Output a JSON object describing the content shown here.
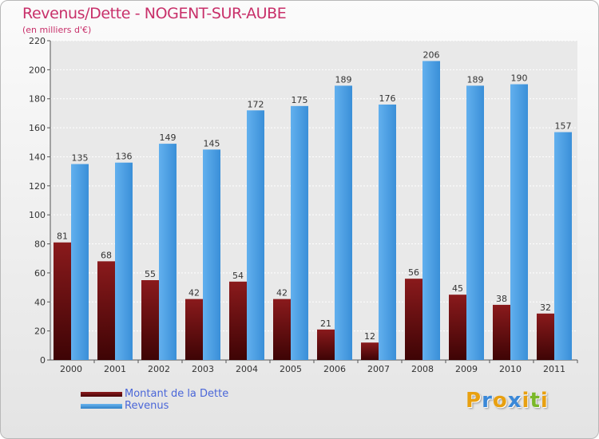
{
  "header": {
    "title": "Revenus/Dette - NOGENT-SUR-AUBE",
    "subtitle": "(en milliers d'€)"
  },
  "chart_data": {
    "type": "bar",
    "categories": [
      "2000",
      "2001",
      "2002",
      "2003",
      "2004",
      "2005",
      "2006",
      "2007",
      "2008",
      "2009",
      "2010",
      "2011"
    ],
    "series": [
      {
        "name": "Montant de la Dette",
        "color": "#6e0e10",
        "values": [
          81,
          68,
          55,
          42,
          54,
          42,
          21,
          12,
          56,
          45,
          38,
          32
        ]
      },
      {
        "name": "Revenus",
        "color": "#4a9fe0",
        "values": [
          135,
          136,
          149,
          145,
          172,
          175,
          189,
          176,
          206,
          189,
          190,
          157
        ]
      }
    ],
    "yticks": [
      0,
      20,
      40,
      60,
      80,
      100,
      120,
      140,
      160,
      180,
      200,
      220
    ],
    "ylim": [
      0,
      220
    ],
    "grid": true,
    "legend_position": "bottom-left"
  },
  "logo": {
    "letters": [
      "P",
      "r",
      "o",
      "x",
      "i",
      "t",
      "i"
    ],
    "colors": [
      "#e8a010",
      "#3a88d8",
      "#e8a010",
      "#3a88d8",
      "#e8a010",
      "#7ab828",
      "#e8a010"
    ]
  }
}
